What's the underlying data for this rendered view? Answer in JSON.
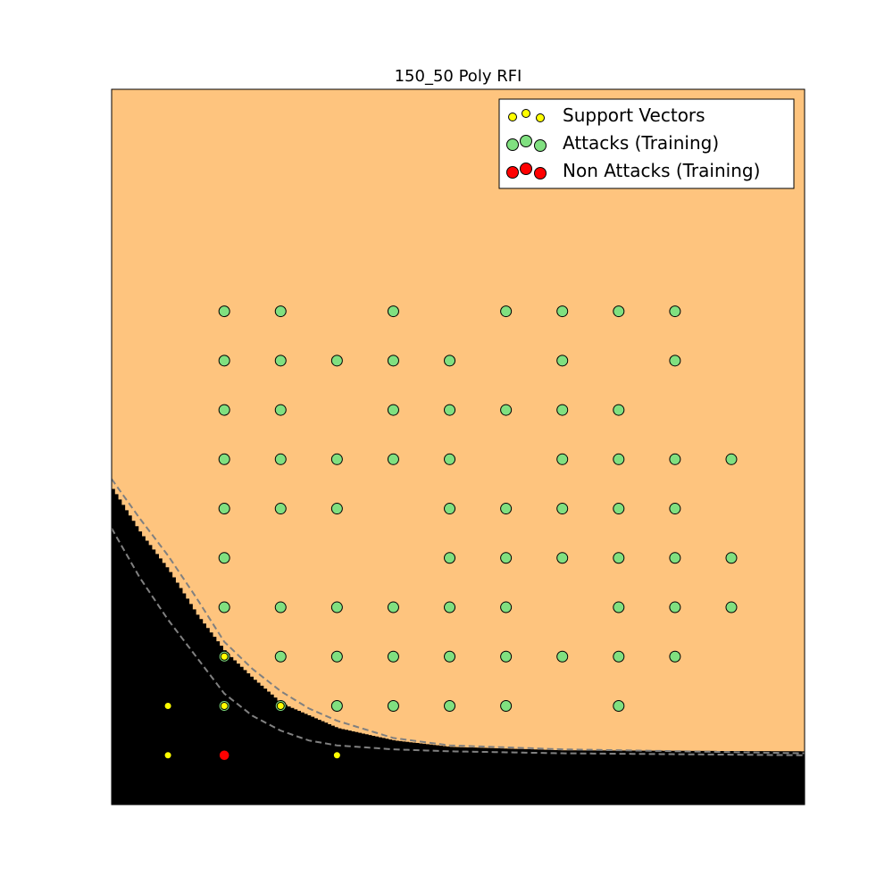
{
  "chart_data": {
    "type": "scatter",
    "title": "150_50 Poly RFI",
    "xlabel": "",
    "ylabel": "",
    "xlim": [
      0,
      12.3
    ],
    "ylim": [
      0,
      14.5
    ],
    "grid": false,
    "legend_placement": "top-right",
    "axes_ticks_visible": false,
    "colors": {
      "attack_region": "#fec47e",
      "non_attack_region": "#000000",
      "margin_lines": "#808080",
      "support_vectors": "#ffff00",
      "attacks": "#80e080",
      "non_attacks": "#ff0000"
    },
    "decision_boundary": {
      "x": [
        0,
        0.5,
        1,
        1.5,
        2,
        2.5,
        3,
        3.5,
        4,
        5,
        6,
        8,
        12.3
      ],
      "y": [
        6.4,
        5.5,
        4.75,
        3.85,
        3.1,
        2.55,
        2.05,
        1.8,
        1.55,
        1.3,
        1.17,
        1.1,
        1.08
      ]
    },
    "margin_upper": {
      "x": [
        0,
        0.5,
        1,
        1.5,
        2,
        2.5,
        3,
        3.5,
        4,
        5,
        6,
        8,
        12.3
      ],
      "y": [
        6.6,
        5.8,
        5.05,
        4.2,
        3.3,
        2.75,
        2.3,
        1.95,
        1.7,
        1.35,
        1.2,
        1.12,
        1.04
      ]
    },
    "margin_lower": {
      "x": [
        0,
        0.5,
        1,
        1.5,
        2,
        2.5,
        3,
        3.5,
        4,
        5,
        6,
        8,
        12.3
      ],
      "y": [
        5.6,
        4.6,
        3.75,
        3.0,
        2.25,
        1.8,
        1.5,
        1.3,
        1.2,
        1.12,
        1.08,
        1.04,
        1.0
      ]
    },
    "series": [
      {
        "name": "Support Vectors",
        "points": [
          [
            1,
            2
          ],
          [
            1,
            1
          ],
          [
            2,
            2
          ],
          [
            2,
            3
          ],
          [
            3,
            2
          ],
          [
            4,
            1
          ]
        ]
      },
      {
        "name": "Attacks (Training)",
        "points": [
          [
            2,
            10
          ],
          [
            3,
            10
          ],
          [
            5,
            10
          ],
          [
            7,
            10
          ],
          [
            8,
            10
          ],
          [
            9,
            10
          ],
          [
            10,
            10
          ],
          [
            2,
            9
          ],
          [
            3,
            9
          ],
          [
            4,
            9
          ],
          [
            5,
            9
          ],
          [
            6,
            9
          ],
          [
            8,
            9
          ],
          [
            10,
            9
          ],
          [
            2,
            8
          ],
          [
            3,
            8
          ],
          [
            5,
            8
          ],
          [
            6,
            8
          ],
          [
            7,
            8
          ],
          [
            8,
            8
          ],
          [
            9,
            8
          ],
          [
            2,
            7
          ],
          [
            3,
            7
          ],
          [
            4,
            7
          ],
          [
            5,
            7
          ],
          [
            6,
            7
          ],
          [
            8,
            7
          ],
          [
            9,
            7
          ],
          [
            10,
            7
          ],
          [
            11,
            7
          ],
          [
            2,
            6
          ],
          [
            3,
            6
          ],
          [
            4,
            6
          ],
          [
            6,
            6
          ],
          [
            7,
            6
          ],
          [
            8,
            6
          ],
          [
            9,
            6
          ],
          [
            10,
            6
          ],
          [
            2,
            5
          ],
          [
            6,
            5
          ],
          [
            7,
            5
          ],
          [
            8,
            5
          ],
          [
            9,
            5
          ],
          [
            10,
            5
          ],
          [
            11,
            5
          ],
          [
            2,
            4
          ],
          [
            3,
            4
          ],
          [
            4,
            4
          ],
          [
            5,
            4
          ],
          [
            6,
            4
          ],
          [
            7,
            4
          ],
          [
            9,
            4
          ],
          [
            10,
            4
          ],
          [
            11,
            4
          ],
          [
            2,
            3
          ],
          [
            3,
            3
          ],
          [
            4,
            3
          ],
          [
            5,
            3
          ],
          [
            6,
            3
          ],
          [
            7,
            3
          ],
          [
            8,
            3
          ],
          [
            9,
            3
          ],
          [
            10,
            3
          ],
          [
            2,
            2
          ],
          [
            3,
            2
          ],
          [
            4,
            2
          ],
          [
            5,
            2
          ],
          [
            6,
            2
          ],
          [
            7,
            2
          ],
          [
            9,
            2
          ]
        ]
      },
      {
        "name": "Non Attacks (Training)",
        "points": [
          [
            2,
            1
          ]
        ]
      }
    ]
  }
}
